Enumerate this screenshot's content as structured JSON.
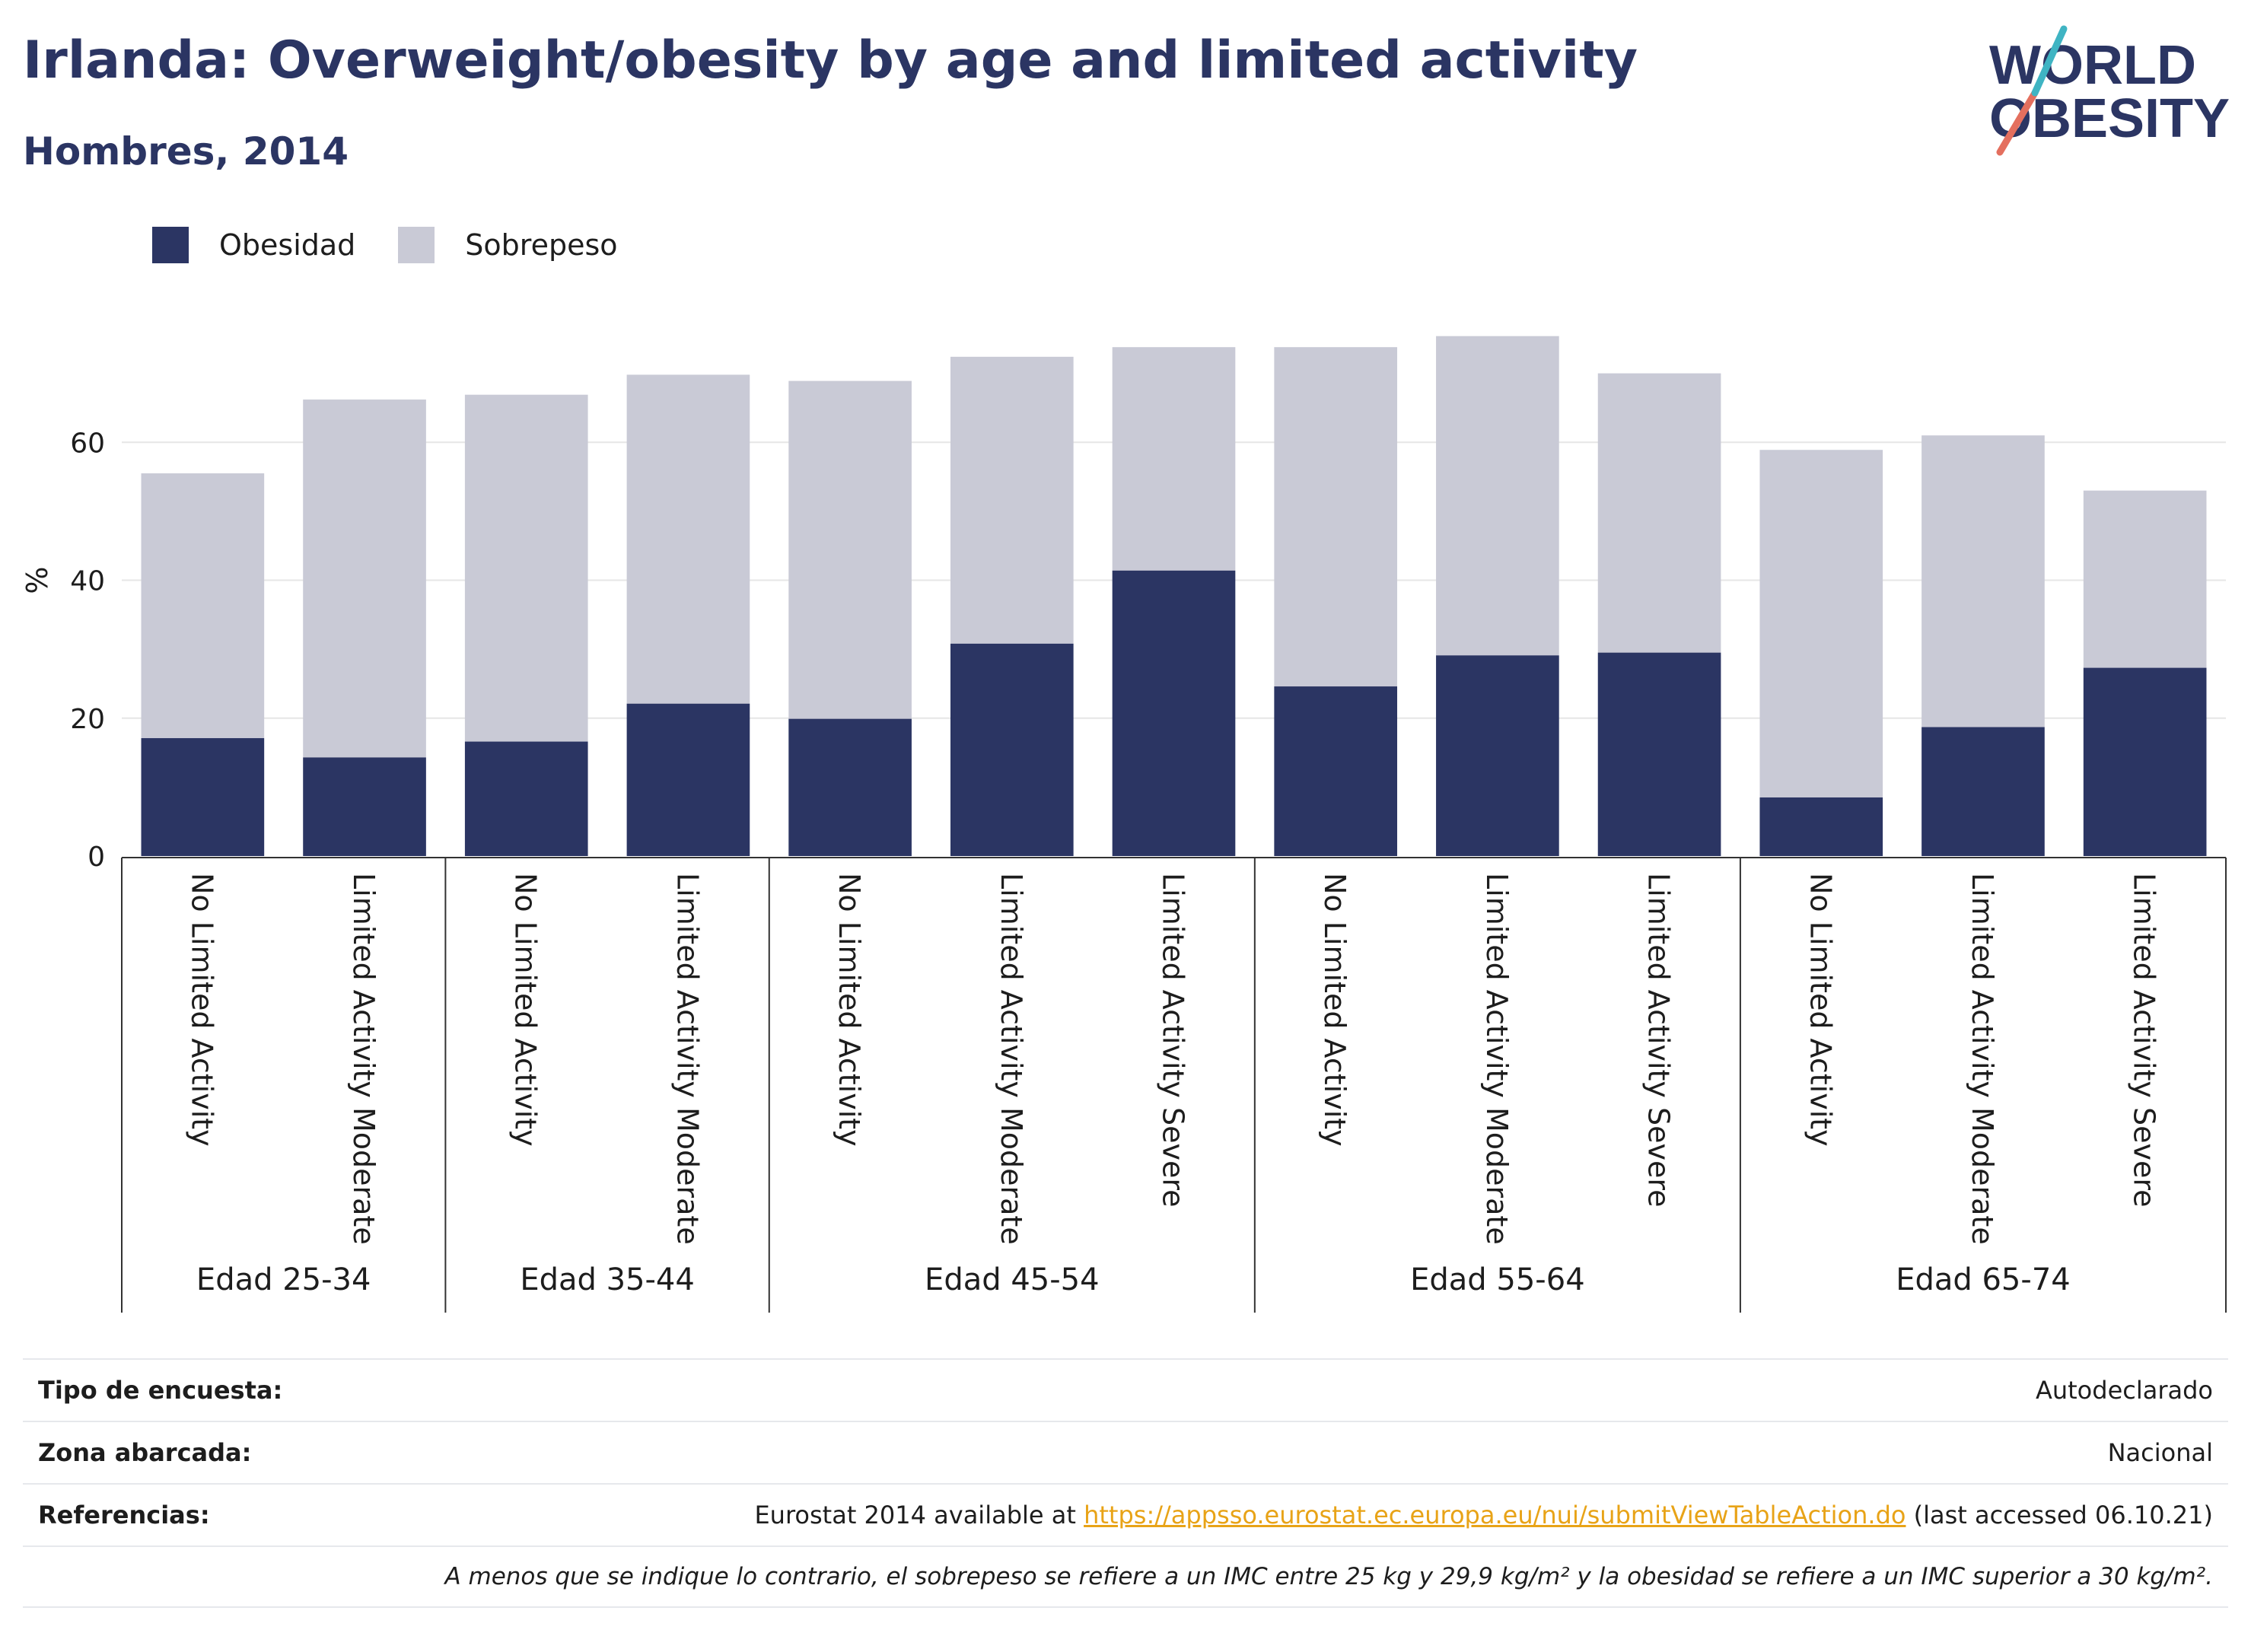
{
  "header": {
    "title": "Irlanda: Overweight/obesity by age and limited activity",
    "subtitle": "Hombres, 2014"
  },
  "logo": {
    "line1": "WORLD",
    "line2": "OBESITY"
  },
  "legend": [
    {
      "label": "Obesidad",
      "color": "#2b3563"
    },
    {
      "label": "Sobrepeso",
      "color": "#c9cad6"
    }
  ],
  "chart_data": {
    "type": "bar",
    "stacked": true,
    "ylabel": "%",
    "ylim": [
      0,
      80
    ],
    "yticks": [
      0,
      20,
      40,
      60
    ],
    "grid": true,
    "legend_position": "top-left",
    "groups": [
      {
        "label": "Edad 25-34",
        "categories": [
          "No Limited Activity",
          "Limited Activity Moderate"
        ]
      },
      {
        "label": "Edad 35-44",
        "categories": [
          "No Limited Activity",
          "Limited Activity Moderate"
        ]
      },
      {
        "label": "Edad 45-54",
        "categories": [
          "No Limited Activity",
          "Limited Activity Moderate",
          "Limited Activity Severe"
        ]
      },
      {
        "label": "Edad 55-64",
        "categories": [
          "No Limited Activity",
          "Limited Activity Moderate",
          "Limited Activity Severe"
        ]
      },
      {
        "label": "Edad 65-74",
        "categories": [
          "No Limited Activity",
          "Limited Activity Moderate",
          "Limited Activity Severe"
        ]
      }
    ],
    "series": [
      {
        "name": "Obesidad",
        "color": "#2b3563",
        "values": [
          17.1,
          14.3,
          16.6,
          22.1,
          19.9,
          30.8,
          41.4,
          24.6,
          29.1,
          29.5,
          8.5,
          18.7,
          27.3
        ]
      },
      {
        "name": "Sobrepeso",
        "color": "#c9cad6",
        "values": [
          38.4,
          51.9,
          50.3,
          47.7,
          49.0,
          41.6,
          32.4,
          49.2,
          46.3,
          40.5,
          50.4,
          42.3,
          25.7
        ]
      }
    ]
  },
  "meta": {
    "survey_type": {
      "key": "Tipo de encuesta:",
      "value": "Autodeclarado"
    },
    "coverage": {
      "key": "Zona abarcada:",
      "value": "Nacional"
    },
    "references": {
      "key": "Referencias:",
      "prefix": "Eurostat 2014 available at ",
      "link": "https://appsso.eurostat.ec.europa.eu/nui/submitViewTableAction.do",
      "suffix": " (last accessed 06.10.21)"
    },
    "footnote": "A menos que se indique lo contrario, el sobrepeso se refiere a un IMC entre 25 kg y 29,9 kg/m² y la obesidad se refiere a un IMC superior a 30 kg/m²."
  }
}
